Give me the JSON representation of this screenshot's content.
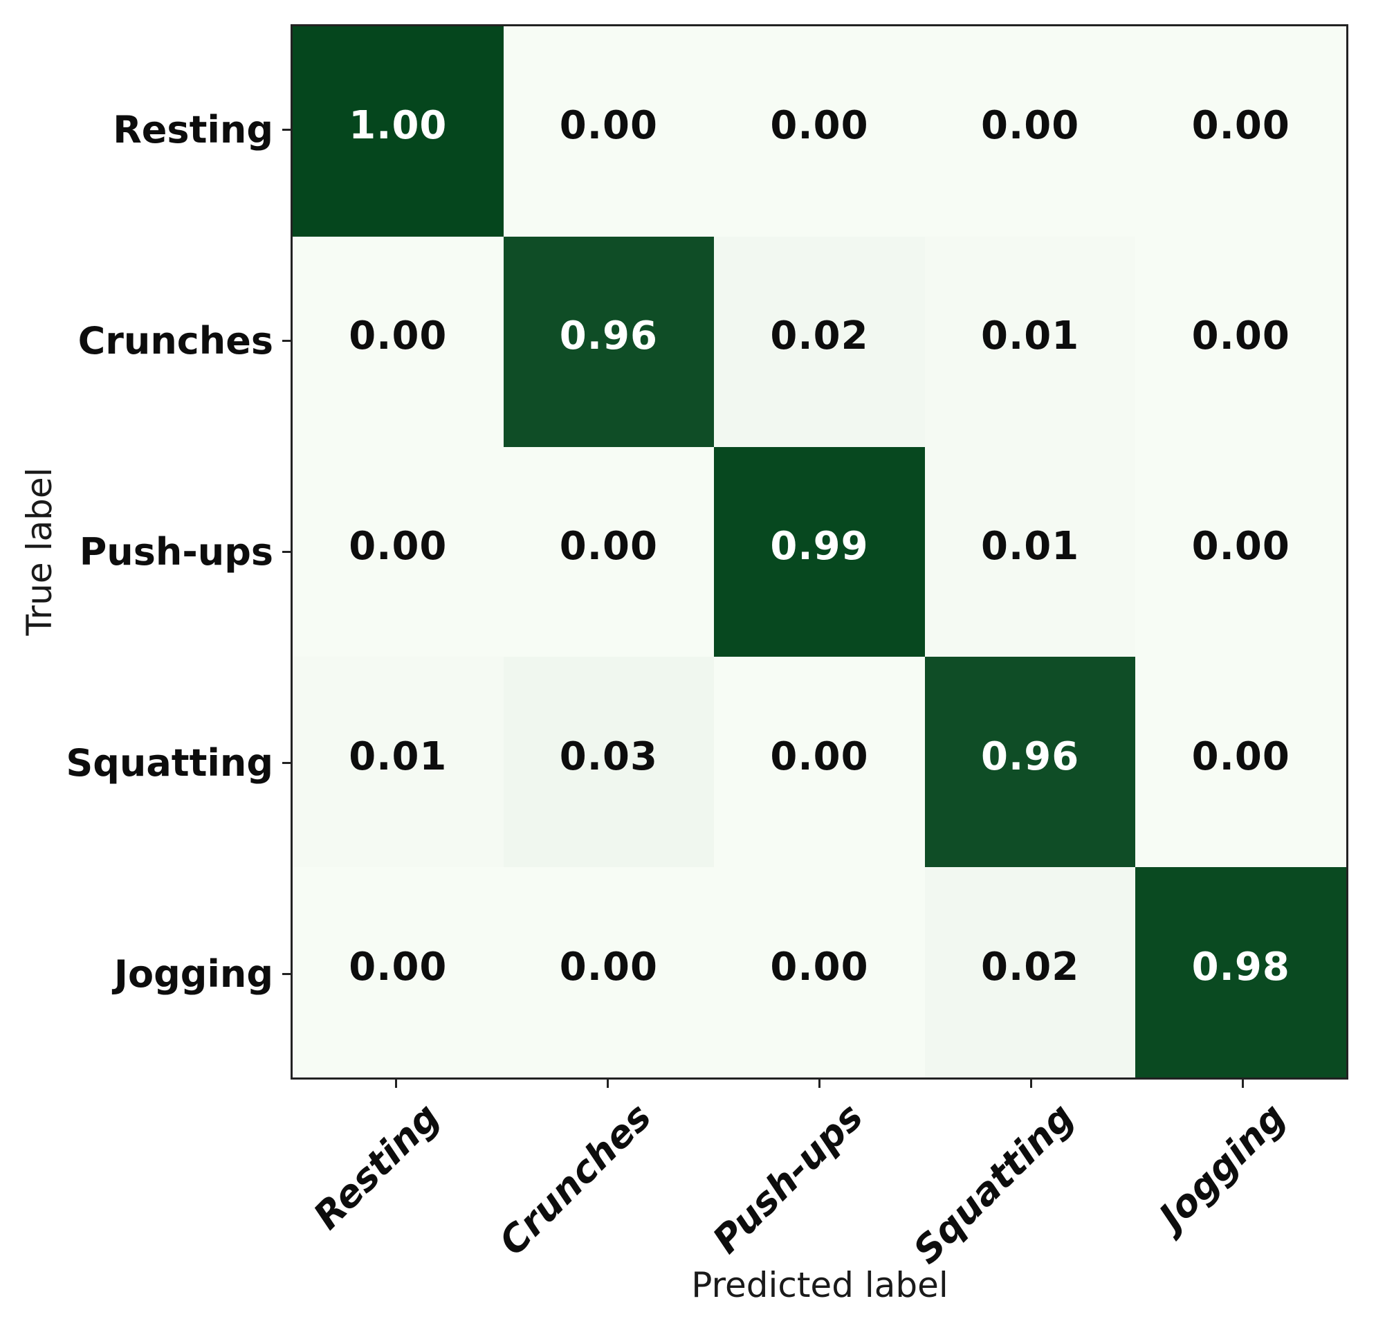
{
  "chart_data": {
    "type": "heatmap",
    "title": "",
    "xlabel": "Predicted label",
    "ylabel": "True label",
    "x_categories": [
      "Resting",
      "Crunches",
      "Push-ups",
      "Squatting",
      "Jogging"
    ],
    "y_categories": [
      "Resting",
      "Crunches",
      "Push-ups",
      "Squatting",
      "Jogging"
    ],
    "matrix": [
      [
        1.0,
        0.0,
        0.0,
        0.0,
        0.0
      ],
      [
        0.0,
        0.96,
        0.02,
        0.01,
        0.0
      ],
      [
        0.0,
        0.0,
        0.99,
        0.01,
        0.0
      ],
      [
        0.01,
        0.03,
        0.0,
        0.96,
        0.0
      ],
      [
        0.0,
        0.0,
        0.0,
        0.02,
        0.98
      ]
    ],
    "value_format": "0.00",
    "value_range": [
      0,
      1
    ],
    "colormap": "Greens",
    "grid": false,
    "legend": "none",
    "colors": {
      "cell_high": "#05461d",
      "cell_low": "#f7fcf5",
      "text_on_dark": "#ffffff",
      "text_on_light": "#0d0d0d",
      "spine": "#222222"
    }
  }
}
